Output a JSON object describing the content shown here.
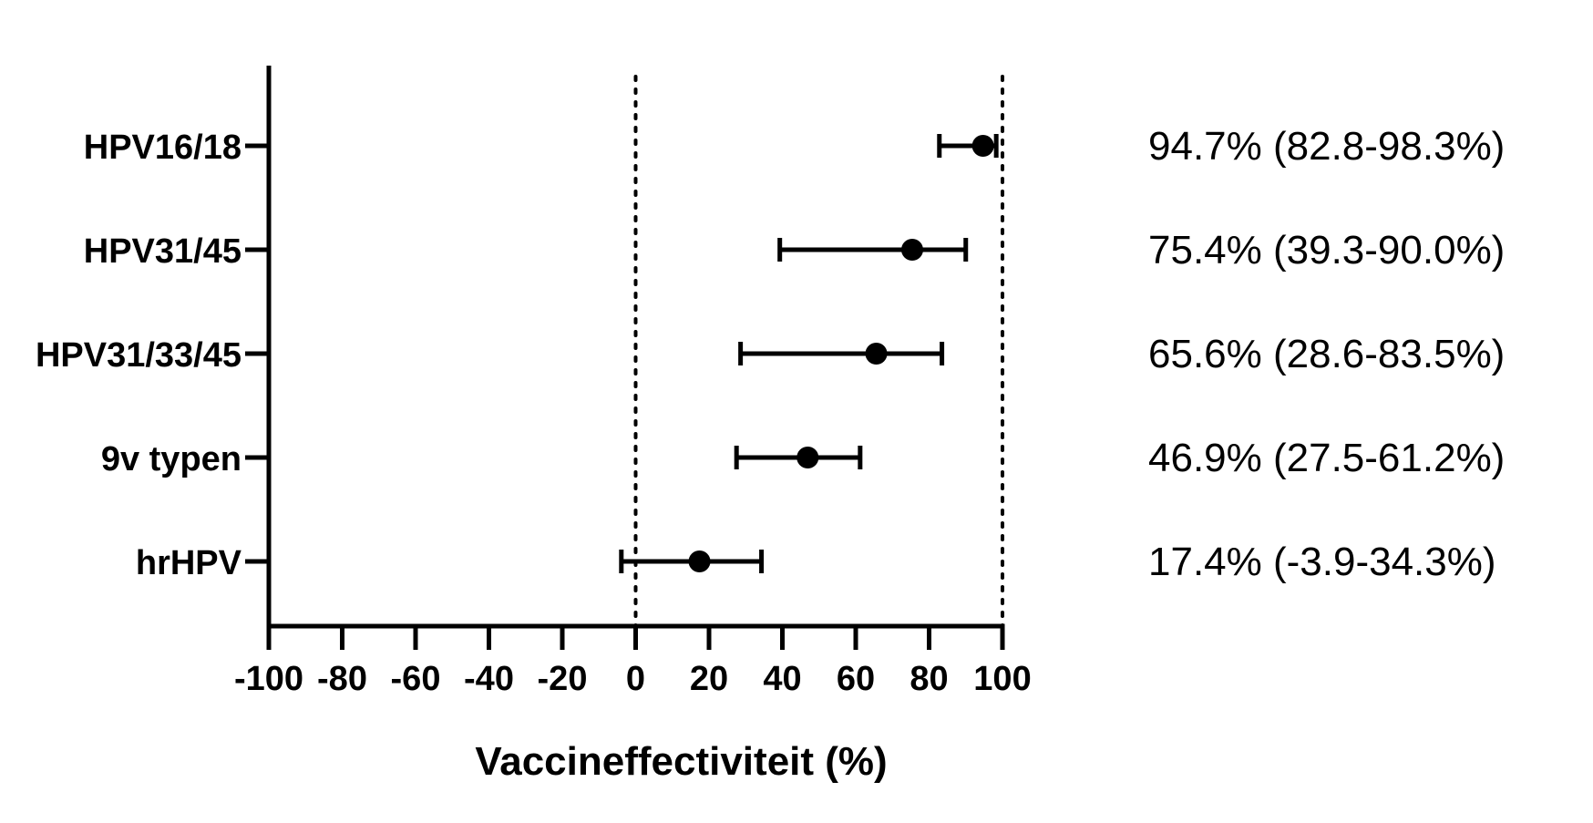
{
  "chart_data": {
    "type": "scatter",
    "subtype": "forest-plot",
    "title": "",
    "xlabel": "Vaccineffectiviteit (%)",
    "ylabel": "",
    "xlim": [
      -100,
      100
    ],
    "xticks": [
      -100,
      -80,
      -60,
      -40,
      -20,
      0,
      20,
      40,
      60,
      80,
      100
    ],
    "reference_lines": [
      0,
      100
    ],
    "grid": false,
    "legend": "none",
    "marker_color": "#000000",
    "rows": [
      {
        "label": "HPV16/18",
        "estimate": 94.7,
        "lower": 82.8,
        "upper": 98.3,
        "annotation": "94.7% (82.8-98.3%)"
      },
      {
        "label": "HPV31/45",
        "estimate": 75.4,
        "lower": 39.3,
        "upper": 90.0,
        "annotation": "75.4% (39.3-90.0%)"
      },
      {
        "label": "HPV31/33/45",
        "estimate": 65.6,
        "lower": 28.6,
        "upper": 83.5,
        "annotation": "65.6% (28.6-83.5%)"
      },
      {
        "label": "9v typen",
        "estimate": 46.9,
        "lower": 27.5,
        "upper": 61.2,
        "annotation": "46.9% (27.5-61.2%)"
      },
      {
        "label": "hrHPV",
        "estimate": 17.4,
        "lower": -3.9,
        "upper": 34.3,
        "annotation": "17.4% (-3.9-34.3%)"
      }
    ]
  }
}
